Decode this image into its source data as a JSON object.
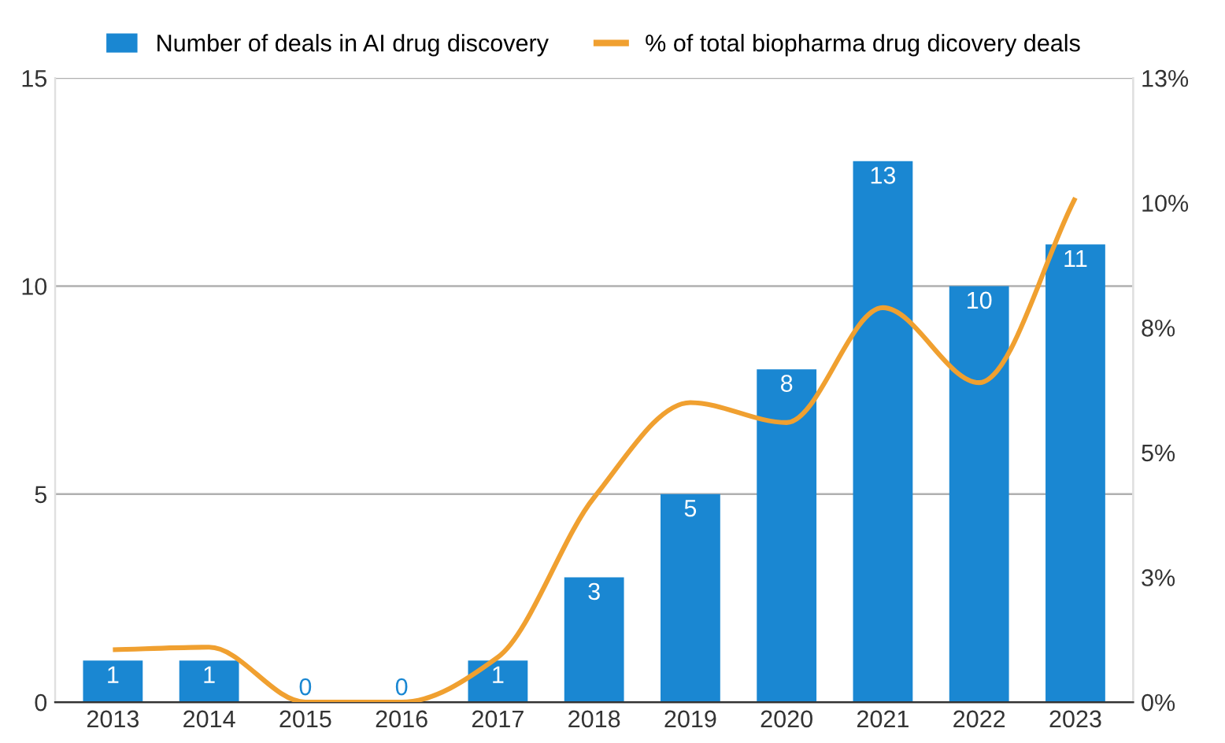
{
  "chart_data": {
    "type": "bar",
    "categories": [
      "2013",
      "2014",
      "2015",
      "2016",
      "2017",
      "2018",
      "2019",
      "2020",
      "2021",
      "2022",
      "2023"
    ],
    "series": [
      {
        "name": "Number of deals in AI drug discovery",
        "color": "#1a87d2",
        "values": [
          1,
          1,
          0,
          0,
          1,
          3,
          5,
          8,
          13,
          10,
          11
        ],
        "value_labels": [
          "1",
          "1",
          "0",
          "0",
          "1",
          "3",
          "5",
          "8",
          "13",
          "10",
          "11"
        ]
      },
      {
        "name": "% of total biopharma drug dicovery deals",
        "type": "line",
        "axis": "y2",
        "color": "#f0a030",
        "values": [
          1.05,
          1.1,
          0,
          0,
          0.9,
          4.1,
          6.0,
          5.6,
          7.9,
          6.4,
          10.1
        ]
      }
    ],
    "ylim": [
      0,
      15
    ],
    "yticks": [
      0,
      5,
      10,
      15
    ],
    "y2lim": [
      0,
      12.5
    ],
    "y2ticks": [
      {
        "value": 0,
        "label": "0%"
      },
      {
        "value": 2.5,
        "label": "3%"
      },
      {
        "value": 5,
        "label": "5%"
      },
      {
        "value": 7.5,
        "label": "8%"
      },
      {
        "value": 10,
        "label": "10%"
      },
      {
        "value": 12.5,
        "label": "13%"
      }
    ],
    "grid": "y",
    "legend": "top",
    "marker": "none",
    "line_style": "solid"
  }
}
